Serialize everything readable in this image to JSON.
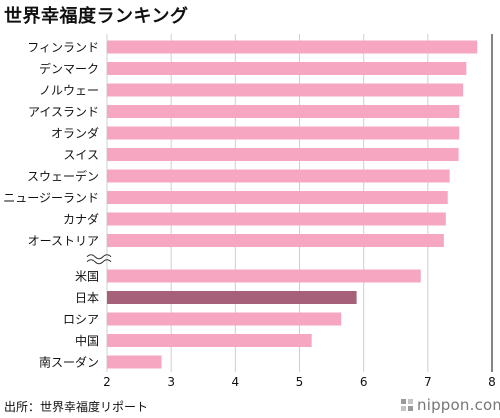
{
  "title": "世界幸福度ランキング",
  "source": "出所：世界幸福度リポート",
  "brand": "nippon.com",
  "colors": {
    "bar": "#f7a6c2",
    "highlight": "#a7607a",
    "grid": "#cfcfcf",
    "axis": "#333333",
    "text": "#111111",
    "brand": "#777777"
  },
  "chart_data": {
    "type": "bar",
    "orientation": "horizontal",
    "title": "世界幸福度ランキング",
    "xlim": [
      2,
      8
    ],
    "xticks": [
      2,
      3,
      4,
      5,
      6,
      7,
      8
    ],
    "grid": true,
    "axis_break_after_index": 9,
    "highlight": "日本",
    "categories": [
      "フィンランド",
      "デンマーク",
      "ノルウェー",
      "アイスランド",
      "オランダ",
      "スイス",
      "スウェーデン",
      "ニュージーランド",
      "カナダ",
      "オーストリア",
      "米国",
      "日本",
      "ロシア",
      "中国",
      "南スーダン"
    ],
    "values": [
      7.77,
      7.6,
      7.55,
      7.49,
      7.49,
      7.48,
      7.34,
      7.31,
      7.28,
      7.25,
      6.89,
      5.89,
      5.65,
      5.19,
      2.85
    ]
  }
}
